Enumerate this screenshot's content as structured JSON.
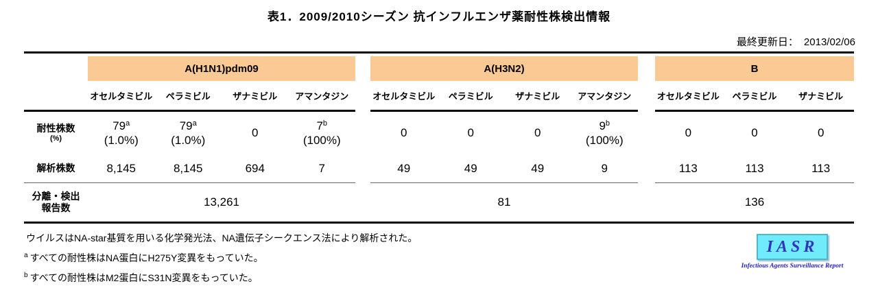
{
  "title": "表1．2009/2010シーズン 抗インフルエンザ薬耐性株検出情報",
  "updated": {
    "label": "最終更新日：",
    "date": "2013/02/06"
  },
  "colors": {
    "band_orange": "#FBC993",
    "logo_bg": "#6FEBFA",
    "logo_text": "#3333BB",
    "logo_border": "#48B8CE"
  },
  "table": {
    "row_headers": {
      "resistant": "耐性株数",
      "resistant_unit": "(%)",
      "analyzed": "解析株数",
      "reported_line1": "分離・検出",
      "reported_line2": "報告数"
    },
    "groups": [
      {
        "name": "A(H1N1)pdm09",
        "drugs": [
          "オセルタミビル",
          "ペラミビル",
          "ザナミビル",
          "アマンタジン"
        ],
        "resistant": [
          {
            "value": "79",
            "sup": "a",
            "pct": "(1.0%)"
          },
          {
            "value": "79",
            "sup": "a",
            "pct": "(1.0%)"
          },
          {
            "value": "0",
            "sup": "",
            "pct": ""
          },
          {
            "value": "7",
            "sup": "b",
            "pct": "(100%)"
          }
        ],
        "analyzed": [
          "8,145",
          "8,145",
          "694",
          "7"
        ],
        "reported": "13,261"
      },
      {
        "name": "A(H3N2)",
        "drugs": [
          "オセルタミビル",
          "ペラミビル",
          "ザナミビル",
          "アマンタジン"
        ],
        "resistant": [
          {
            "value": "0",
            "sup": "",
            "pct": ""
          },
          {
            "value": "0",
            "sup": "",
            "pct": ""
          },
          {
            "value": "0",
            "sup": "",
            "pct": ""
          },
          {
            "value": "9",
            "sup": "b",
            "pct": "(100%)"
          }
        ],
        "analyzed": [
          "49",
          "49",
          "49",
          "9"
        ],
        "reported": "81"
      },
      {
        "name": "B",
        "drugs": [
          "オセルタミビル",
          "ペラミビル",
          "ザナミビル"
        ],
        "resistant": [
          {
            "value": "0",
            "sup": "",
            "pct": ""
          },
          {
            "value": "0",
            "sup": "",
            "pct": ""
          },
          {
            "value": "0",
            "sup": "",
            "pct": ""
          }
        ],
        "analyzed": [
          "113",
          "113",
          "113"
        ],
        "reported": "136"
      }
    ]
  },
  "notes": [
    {
      "sup": "",
      "text": "ウイルスはNA-star基質を用いる化学発光法、NA遺伝子シークエンス法により解析された。"
    },
    {
      "sup": "a",
      "text": "すべての耐性株はNA蛋白にH275Y変異をもっていた。"
    },
    {
      "sup": "b",
      "text": "すべての耐性株はM2蛋白にS31N変異をもっていた。"
    }
  ],
  "logo": {
    "acronym": "IASR",
    "caption": "Infectious Agents Surveillance Report"
  }
}
